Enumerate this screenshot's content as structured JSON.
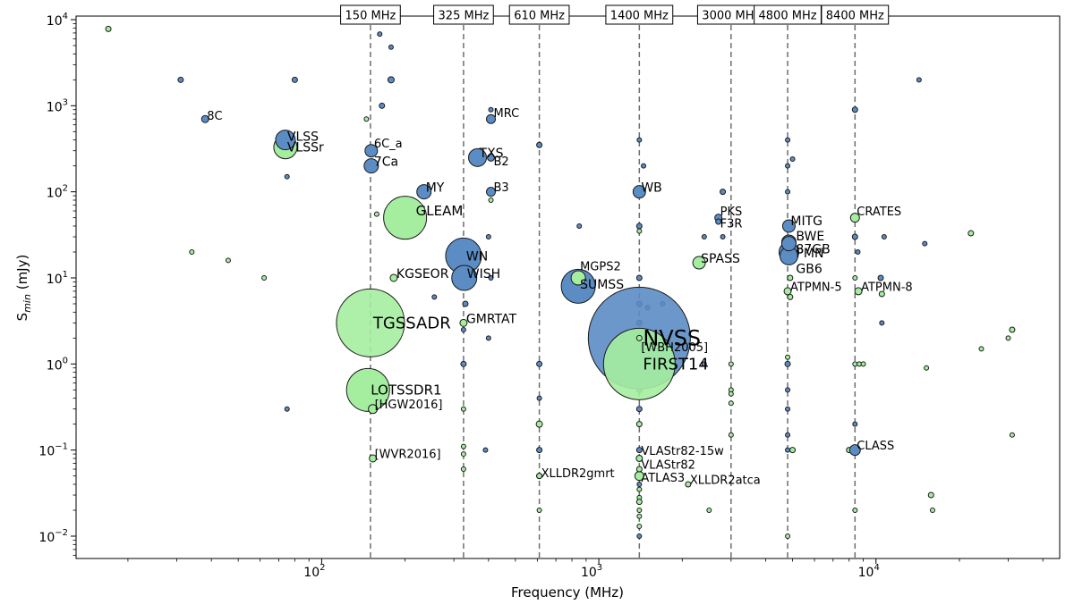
{
  "chart_data": {
    "type": "scatter",
    "title": "",
    "xlabel": "Frequency (MHz)",
    "ylabel_main": "S",
    "ylabel_sub": "min",
    "ylabel_unit": " (mJy)",
    "xscale": "log",
    "yscale": "log",
    "xlim": [
      13,
      46000
    ],
    "ylim": [
      0.0055,
      11000
    ],
    "x_ticks": [
      {
        "value": 100,
        "base": "10",
        "exp": "2"
      },
      {
        "value": 1000,
        "base": "10",
        "exp": "3"
      },
      {
        "value": 10000,
        "base": "10",
        "exp": "4"
      }
    ],
    "y_ticks": [
      {
        "value": 0.01,
        "base": "10",
        "exp": "−2"
      },
      {
        "value": 0.1,
        "base": "10",
        "exp": "−1"
      },
      {
        "value": 1,
        "base": "10",
        "exp": "0"
      },
      {
        "value": 10,
        "base": "10",
        "exp": "1"
      },
      {
        "value": 100,
        "base": "10",
        "exp": "2"
      },
      {
        "value": 1000,
        "base": "10",
        "exp": "3"
      },
      {
        "value": 10000,
        "base": "10",
        "exp": "4"
      }
    ],
    "colors": {
      "blue": "#5b8cc4",
      "green": "#a5eea0",
      "edge": "#1a1a1a",
      "line": "#6e6e6e"
    },
    "reference_bands": [
      {
        "label": "150 MHz",
        "x": 150
      },
      {
        "label": "325 MHz",
        "x": 325
      },
      {
        "label": "610 MHz",
        "x": 610
      },
      {
        "label": "1400 MHz",
        "x": 1400
      },
      {
        "label": "3000 MHz",
        "x": 3000
      },
      {
        "label": "4800 MHz",
        "x": 4800
      },
      {
        "label": "8400 MHz",
        "x": 8400
      }
    ],
    "surveys": [
      {
        "name": "NVSS",
        "freq": 1400,
        "smin": 2,
        "color": "blue",
        "size": 57,
        "label_dx": 4,
        "label_dy": 0,
        "font": 24
      },
      {
        "name": "FIRST14",
        "freq": 1400,
        "smin": 1,
        "color": "green",
        "size": 40,
        "label_dx": 4,
        "label_dy": 0,
        "font": 18
      },
      {
        "name": "TGSSADR",
        "freq": 150,
        "smin": 3,
        "color": "green",
        "size": 38,
        "label_dx": 3,
        "label_dy": 0,
        "font": 18
      },
      {
        "name": "LOTSSDR1",
        "freq": 147,
        "smin": 0.5,
        "color": "green",
        "size": 24,
        "label_dx": 3,
        "label_dy": 0,
        "font": 15
      },
      {
        "name": "GLEAM",
        "freq": 200,
        "smin": 50,
        "color": "green",
        "size": 24,
        "label_dx": 12,
        "label_dy": -8,
        "font": 15
      },
      {
        "name": "WN",
        "freq": 325,
        "smin": 18,
        "color": "blue",
        "size": 20,
        "label_dx": 3,
        "label_dy": 0,
        "font": 14
      },
      {
        "name": "WISH",
        "freq": 327,
        "smin": 10,
        "color": "blue",
        "size": 14,
        "label_dx": 3,
        "label_dy": -5,
        "font": 14
      },
      {
        "name": "SUMSS",
        "freq": 843,
        "smin": 8,
        "color": "blue",
        "size": 19,
        "label_dx": 2,
        "label_dy": -2,
        "font": 14
      },
      {
        "name": "MGPS2",
        "freq": 843,
        "smin": 10,
        "color": "green",
        "size": 8,
        "label_dx": 2,
        "label_dy": -13,
        "font": 13
      },
      {
        "name": "VLSS",
        "freq": 74,
        "smin": 400,
        "color": "blue",
        "size": 11,
        "label_dx": 2,
        "label_dy": -4,
        "font": 14
      },
      {
        "name": "VLSSr",
        "freq": 74,
        "smin": 330,
        "color": "green",
        "size": 13,
        "label_dx": 2,
        "label_dy": 0,
        "font": 14
      },
      {
        "name": "TXS",
        "freq": 365,
        "smin": 250,
        "color": "blue",
        "size": 10,
        "label_dx": 2,
        "label_dy": -5,
        "font": 14
      },
      {
        "name": "B2",
        "freq": 408,
        "smin": 250,
        "color": "blue",
        "size": 4,
        "label_dx": 3,
        "label_dy": 4,
        "font": 13
      },
      {
        "name": "6C_a",
        "freq": 151,
        "smin": 300,
        "color": "blue",
        "size": 7,
        "label_dx": 3,
        "label_dy": -8,
        "font": 13
      },
      {
        "name": "7Ca",
        "freq": 151,
        "smin": 200,
        "color": "blue",
        "size": 8,
        "label_dx": 3,
        "label_dy": -5,
        "font": 14
      },
      {
        "name": "MY",
        "freq": 234,
        "smin": 100,
        "color": "blue",
        "size": 8,
        "label_dx": 2,
        "label_dy": -5,
        "font": 14
      },
      {
        "name": "B3",
        "freq": 408,
        "smin": 100,
        "color": "blue",
        "size": 5,
        "label_dx": 3,
        "label_dy": -5,
        "font": 13
      },
      {
        "name": "MRC",
        "freq": 408,
        "smin": 700,
        "color": "blue",
        "size": 5,
        "label_dx": 3,
        "label_dy": -7,
        "font": 13
      },
      {
        "name": "8C",
        "freq": 38,
        "smin": 700,
        "color": "blue",
        "size": 4,
        "label_dx": 2,
        "label_dy": -4,
        "font": 13
      },
      {
        "name": "KGSEOR",
        "freq": 182,
        "smin": 10,
        "color": "green",
        "size": 4,
        "label_dx": 3,
        "label_dy": -5,
        "font": 14
      },
      {
        "name": "GMRTAT",
        "freq": 325,
        "smin": 3,
        "color": "green",
        "size": 4,
        "label_dx": 3,
        "label_dy": -5,
        "font": 14
      },
      {
        "name": "WB",
        "freq": 1400,
        "smin": 100,
        "color": "blue",
        "size": 7,
        "label_dx": 2,
        "label_dy": -5,
        "font": 14
      },
      {
        "name": "PKS",
        "freq": 2700,
        "smin": 50,
        "color": "blue",
        "size": 4,
        "label_dx": 2,
        "label_dy": -7,
        "font": 13
      },
      {
        "name": "F3R",
        "freq": 2700,
        "smin": 45,
        "color": "blue",
        "size": 3,
        "label_dx": 2,
        "label_dy": 2,
        "font": 13
      },
      {
        "name": "SPASS",
        "freq": 2300,
        "smin": 15,
        "color": "green",
        "size": 7,
        "label_dx": 2,
        "label_dy": -5,
        "font": 14
      },
      {
        "name": "MITG",
        "freq": 4850,
        "smin": 40,
        "color": "blue",
        "size": 7,
        "label_dx": 2,
        "label_dy": -6,
        "font": 14
      },
      {
        "name": "BWE",
        "freq": 4850,
        "smin": 26,
        "color": "blue",
        "size": 8,
        "label_dx": 8,
        "label_dy": -7,
        "font": 14
      },
      {
        "name": "87GB",
        "freq": 4850,
        "smin": 25,
        "color": "blue",
        "size": 8,
        "label_dx": 8,
        "label_dy": 6,
        "font": 14
      },
      {
        "name": "PMN",
        "freq": 4850,
        "smin": 20,
        "color": "blue",
        "size": 11,
        "label_dx": 8,
        "label_dy": 1,
        "font": 14
      },
      {
        "name": "GB6",
        "freq": 4850,
        "smin": 18,
        "color": "blue",
        "size": 10,
        "label_dx": 8,
        "label_dy": 14,
        "font": 14
      },
      {
        "name": "ATPMN-5",
        "freq": 4800,
        "smin": 7,
        "color": "green",
        "size": 4,
        "label_dx": 3,
        "label_dy": -5,
        "font": 13
      },
      {
        "name": "ATPMN-8",
        "freq": 8640,
        "smin": 7,
        "color": "green",
        "size": 4,
        "label_dx": 3,
        "label_dy": -5,
        "font": 13
      },
      {
        "name": "CRATES",
        "freq": 8400,
        "smin": 50,
        "color": "green",
        "size": 5,
        "label_dx": 2,
        "label_dy": -7,
        "font": 13
      },
      {
        "name": "CLASS",
        "freq": 8400,
        "smin": 0.1,
        "color": "blue",
        "size": 6,
        "label_dx": 2,
        "label_dy": -5,
        "font": 13
      },
      {
        "name": "[WBH2005]",
        "freq": 1400,
        "smin": 2,
        "color": "green",
        "size": 3,
        "label_dx": 2,
        "label_dy": 10,
        "font": 13
      },
      {
        "name": "[HGW2016]",
        "freq": 153,
        "smin": 0.3,
        "color": "green",
        "size": 5,
        "label_dx": 2,
        "label_dy": -5,
        "font": 13
      },
      {
        "name": "[WVR2016]",
        "freq": 153,
        "smin": 0.08,
        "color": "green",
        "size": 4,
        "label_dx": 2,
        "label_dy": -5,
        "font": 13
      },
      {
        "name": "XLLDR2gmrt",
        "freq": 610,
        "smin": 0.05,
        "color": "green",
        "size": 3,
        "label_dx": 2,
        "label_dy": -3,
        "font": 13
      },
      {
        "name": "VLAStr82-15w",
        "freq": 1400,
        "smin": 0.1,
        "color": "blue",
        "size": 3,
        "label_dx": 2,
        "label_dy": 1,
        "font": 13
      },
      {
        "name": "VLAStr82",
        "freq": 1400,
        "smin": 0.06,
        "color": "green",
        "size": 3,
        "label_dx": 2,
        "label_dy": -5,
        "font": 13
      },
      {
        "name": "ATLAS3",
        "freq": 1400,
        "smin": 0.05,
        "color": "green",
        "size": 5,
        "label_dx": 2,
        "label_dy": 2,
        "font": 13
      },
      {
        "name": "XLLDR2atca",
        "freq": 2100,
        "smin": 0.04,
        "color": "green",
        "size": 3,
        "label_dx": 2,
        "label_dy": -5,
        "font": 13
      }
    ],
    "unlabeled_points": [
      [
        17,
        7800,
        "green",
        3
      ],
      [
        31,
        2000,
        "blue",
        3
      ],
      [
        34,
        20,
        "green",
        2.5
      ],
      [
        46,
        16,
        "green",
        2.5
      ],
      [
        62,
        10,
        "green",
        2.5
      ],
      [
        75,
        150,
        "blue",
        2.5
      ],
      [
        75,
        0.3,
        "blue",
        2.5
      ],
      [
        80,
        2000,
        "blue",
        3
      ],
      [
        145,
        700,
        "green",
        2.5
      ],
      [
        158,
        55,
        "green",
        2.5
      ],
      [
        162,
        6800,
        "blue",
        2.5
      ],
      [
        165,
        1000,
        "blue",
        3
      ],
      [
        172,
        60,
        "green",
        2.5
      ],
      [
        178,
        4800,
        "blue",
        2.5
      ],
      [
        178,
        2000,
        "blue",
        3.5
      ],
      [
        255,
        6,
        "blue",
        2.5
      ],
      [
        325,
        2.5,
        "blue",
        2.5
      ],
      [
        325,
        1,
        "blue",
        3
      ],
      [
        325,
        0.3,
        "green",
        2.5
      ],
      [
        325,
        0.11,
        "green",
        2.5
      ],
      [
        325,
        0.09,
        "green",
        2.5
      ],
      [
        325,
        0.06,
        "green",
        2.5
      ],
      [
        330,
        5,
        "blue",
        3
      ],
      [
        332,
        20,
        "green",
        2.5
      ],
      [
        390,
        0.1,
        "blue",
        2.5
      ],
      [
        400,
        2,
        "blue",
        2.5
      ],
      [
        400,
        30,
        "blue",
        2.5
      ],
      [
        408,
        900,
        "blue",
        2.5
      ],
      [
        408,
        80,
        "green",
        2.5
      ],
      [
        408,
        10,
        "blue",
        2.5
      ],
      [
        610,
        350,
        "blue",
        3
      ],
      [
        610,
        1,
        "blue",
        3
      ],
      [
        610,
        0.4,
        "blue",
        2.5
      ],
      [
        610,
        0.2,
        "green",
        3.5
      ],
      [
        610,
        0.1,
        "blue",
        3
      ],
      [
        610,
        0.05,
        "blue",
        3
      ],
      [
        610,
        0.02,
        "green",
        2.5
      ],
      [
        850,
        40,
        "blue",
        2.5
      ],
      [
        1400,
        400,
        "blue",
        2.5
      ],
      [
        1400,
        40,
        "blue",
        3
      ],
      [
        1400,
        35,
        "green",
        2.5
      ],
      [
        1400,
        10,
        "blue",
        3
      ],
      [
        1400,
        5,
        "blue",
        3
      ],
      [
        1400,
        3,
        "blue",
        3
      ],
      [
        1400,
        1,
        "green",
        3
      ],
      [
        1400,
        0.5,
        "blue",
        3
      ],
      [
        1400,
        0.3,
        "blue",
        3
      ],
      [
        1400,
        0.2,
        "green",
        3
      ],
      [
        1400,
        0.08,
        "green",
        3.5
      ],
      [
        1400,
        0.04,
        "blue",
        2.5
      ],
      [
        1400,
        0.035,
        "green",
        2.5
      ],
      [
        1400,
        0.028,
        "green",
        2.5
      ],
      [
        1400,
        0.025,
        "green",
        3
      ],
      [
        1400,
        0.02,
        "green",
        2.5
      ],
      [
        1400,
        0.017,
        "green",
        2.5
      ],
      [
        1400,
        0.013,
        "green",
        2.5
      ],
      [
        1400,
        0.01,
        "blue",
        2.5
      ],
      [
        1450,
        200,
        "blue",
        2.5
      ],
      [
        1500,
        4.5,
        "blue",
        2.5
      ],
      [
        1700,
        5,
        "blue",
        2.5
      ],
      [
        2400,
        1,
        "blue",
        2.5
      ],
      [
        2400,
        30,
        "blue",
        2.5
      ],
      [
        2500,
        0.02,
        "green",
        2.5
      ],
      [
        2800,
        100,
        "blue",
        3
      ],
      [
        2800,
        30,
        "blue",
        2.5
      ],
      [
        3000,
        1,
        "green",
        2.5
      ],
      [
        3000,
        0.5,
        "green",
        2.5
      ],
      [
        3000,
        0.45,
        "green",
        2.5
      ],
      [
        3000,
        0.35,
        "green",
        2.5
      ],
      [
        3000,
        0.15,
        "green",
        2.5
      ],
      [
        4800,
        400,
        "blue",
        2.5
      ],
      [
        4800,
        200,
        "blue",
        2.5
      ],
      [
        4800,
        100,
        "blue",
        2.5
      ],
      [
        4800,
        1.2,
        "green",
        2.5
      ],
      [
        4800,
        1,
        "blue",
        3
      ],
      [
        4800,
        0.5,
        "blue",
        2.5
      ],
      [
        4800,
        0.3,
        "blue",
        2.5
      ],
      [
        4800,
        0.15,
        "blue",
        2.5
      ],
      [
        4800,
        0.1,
        "blue",
        2.5
      ],
      [
        4800,
        0.01,
        "green",
        2.5
      ],
      [
        4900,
        6,
        "green",
        3
      ],
      [
        4900,
        10,
        "green",
        3
      ],
      [
        5000,
        240,
        "blue",
        2.5
      ],
      [
        5000,
        0.1,
        "green",
        3
      ],
      [
        8000,
        0.1,
        "green",
        3
      ],
      [
        8400,
        900,
        "blue",
        3
      ],
      [
        8400,
        30,
        "blue",
        3
      ],
      [
        8400,
        10,
        "green",
        2.5
      ],
      [
        8400,
        1,
        "green",
        2.5
      ],
      [
        8400,
        0.2,
        "blue",
        2.5
      ],
      [
        8400,
        0.02,
        "green",
        2.5
      ],
      [
        8600,
        20,
        "blue",
        2.5
      ],
      [
        8700,
        1,
        "green",
        2.5
      ],
      [
        9000,
        1,
        "green",
        2.5
      ],
      [
        10400,
        10,
        "blue",
        3
      ],
      [
        10500,
        6.5,
        "green",
        3
      ],
      [
        10500,
        3,
        "blue",
        2.5
      ],
      [
        10700,
        30,
        "blue",
        2.5
      ],
      [
        14300,
        2000,
        "blue",
        2.5
      ],
      [
        15000,
        25,
        "blue",
        2.5
      ],
      [
        15200,
        0.9,
        "green",
        2.5
      ],
      [
        15800,
        0.03,
        "green",
        3
      ],
      [
        16000,
        0.02,
        "green",
        2.5
      ],
      [
        22000,
        33,
        "green",
        3
      ],
      [
        24000,
        1.5,
        "green",
        2.5
      ],
      [
        30000,
        2,
        "green",
        2.5
      ],
      [
        31000,
        2.5,
        "green",
        3
      ],
      [
        31000,
        0.15,
        "green",
        2.5
      ]
    ]
  }
}
